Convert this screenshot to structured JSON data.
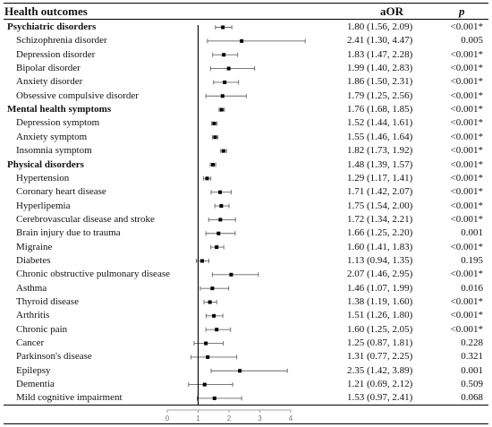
{
  "header": {
    "outcome": "Health outcomes",
    "aor": "aOR",
    "p": "p"
  },
  "chart_data": {
    "type": "forest",
    "x_ticks": [
      "0",
      "1",
      "2",
      "3",
      "4"
    ],
    "xlim": [
      0,
      4
    ],
    "reference_line": 1,
    "rows": [
      {
        "kind": "category",
        "label": "Psychiatric disorders",
        "aor": 1.8,
        "lo": 1.56,
        "hi": 2.09,
        "aor_text": "1.80 (1.56, 2.09)",
        "p": "<0.001*"
      },
      {
        "kind": "item",
        "label": "Schizophrenia disorder",
        "aor": 2.41,
        "lo": 1.3,
        "hi": 4.47,
        "aor_text": "2.41 (1.30, 4.47)",
        "p": "0.005"
      },
      {
        "kind": "item",
        "label": "Depression disorder",
        "aor": 1.83,
        "lo": 1.47,
        "hi": 2.28,
        "aor_text": "1.83 (1.47, 2.28)",
        "p": "<0.001*"
      },
      {
        "kind": "item",
        "label": "Bipolar disorder",
        "aor": 1.99,
        "lo": 1.4,
        "hi": 2.83,
        "aor_text": "1.99 (1.40, 2.83)",
        "p": "<0.001*"
      },
      {
        "kind": "item",
        "label": "Anxiety disorder",
        "aor": 1.86,
        "lo": 1.5,
        "hi": 2.31,
        "aor_text": "1.86 (1.50, 2.31)",
        "p": "<0.001*"
      },
      {
        "kind": "item",
        "label": "Obsessive compulsive disorder",
        "aor": 1.79,
        "lo": 1.25,
        "hi": 2.56,
        "aor_text": "1.79 (1.25, 2.56)",
        "p": "<0.001*"
      },
      {
        "kind": "category",
        "label": "Mental health symptoms",
        "aor": 1.76,
        "lo": 1.68,
        "hi": 1.85,
        "aor_text": "1.76 (1.68, 1.85)",
        "p": "<0.001*"
      },
      {
        "kind": "item",
        "label": "Depression symptom",
        "aor": 1.52,
        "lo": 1.44,
        "hi": 1.61,
        "aor_text": "1.52 (1.44, 1.61)",
        "p": "<0.001*"
      },
      {
        "kind": "item",
        "label": "Anxiety symptom",
        "aor": 1.55,
        "lo": 1.46,
        "hi": 1.64,
        "aor_text": "1.55 (1.46, 1.64)",
        "p": "<0.001*"
      },
      {
        "kind": "item",
        "label": "Insomnia symptom",
        "aor": 1.82,
        "lo": 1.73,
        "hi": 1.92,
        "aor_text": "1.82 (1.73, 1.92)",
        "p": "<0.001*"
      },
      {
        "kind": "category",
        "label": "Physical disorders",
        "aor": 1.48,
        "lo": 1.39,
        "hi": 1.57,
        "aor_text": "1.48 (1.39, 1.57)",
        "p": "<0.001*"
      },
      {
        "kind": "item",
        "label": "Hypertension",
        "aor": 1.29,
        "lo": 1.17,
        "hi": 1.41,
        "aor_text": "1.29 (1.17, 1.41)",
        "p": "<0.001*"
      },
      {
        "kind": "item",
        "label": "Coronary heart disease",
        "aor": 1.71,
        "lo": 1.42,
        "hi": 2.07,
        "aor_text": "1.71 (1.42, 2.07)",
        "p": "<0.001*"
      },
      {
        "kind": "item",
        "label": "Hyperlipemia",
        "aor": 1.75,
        "lo": 1.54,
        "hi": 2.0,
        "aor_text": "1.75 (1.54, 2.00)",
        "p": "<0.001*"
      },
      {
        "kind": "item",
        "label": "Cerebrovascular disease and stroke",
        "aor": 1.72,
        "lo": 1.34,
        "hi": 2.21,
        "aor_text": "1.72 (1.34, 2.21)",
        "p": "<0.001*"
      },
      {
        "kind": "item",
        "label": "Brain injury due to trauma",
        "aor": 1.66,
        "lo": 1.25,
        "hi": 2.2,
        "aor_text": "1.66 (1.25, 2.20)",
        "p": "0.001"
      },
      {
        "kind": "item",
        "label": "Migraine",
        "aor": 1.6,
        "lo": 1.41,
        "hi": 1.83,
        "aor_text": "1.60 (1.41, 1.83)",
        "p": "<0.001*"
      },
      {
        "kind": "item",
        "label": "Diabetes",
        "aor": 1.13,
        "lo": 0.94,
        "hi": 1.35,
        "aor_text": "1.13 (0.94, 1.35)",
        "p": "0.195"
      },
      {
        "kind": "item",
        "label": "Chronic obstructive pulmonary disease",
        "aor": 2.07,
        "lo": 1.46,
        "hi": 2.95,
        "aor_text": "2.07 (1.46, 2.95)",
        "p": "<0.001*"
      },
      {
        "kind": "item",
        "label": "Asthma",
        "aor": 1.46,
        "lo": 1.07,
        "hi": 1.99,
        "aor_text": "1.46 (1.07, 1.99)",
        "p": "0.016"
      },
      {
        "kind": "item",
        "label": "Thyroid disease",
        "aor": 1.38,
        "lo": 1.19,
        "hi": 1.6,
        "aor_text": "1.38 (1.19, 1.60)",
        "p": "<0.001*"
      },
      {
        "kind": "item",
        "label": "Arthritis",
        "aor": 1.51,
        "lo": 1.26,
        "hi": 1.8,
        "aor_text": "1.51 (1.26, 1.80)",
        "p": "<0.001*"
      },
      {
        "kind": "item",
        "label": "Chronic pain",
        "aor": 1.6,
        "lo": 1.25,
        "hi": 2.05,
        "aor_text": "1.60 (1.25, 2.05)",
        "p": "<0.001*"
      },
      {
        "kind": "item",
        "label": "Cancer",
        "aor": 1.25,
        "lo": 0.87,
        "hi": 1.81,
        "aor_text": "1.25 (0.87, 1.81)",
        "p": "0.228"
      },
      {
        "kind": "item",
        "label": "Parkinson's disease",
        "aor": 1.31,
        "lo": 0.77,
        "hi": 2.25,
        "aor_text": "1.31 (0.77, 2.25)",
        "p": "0.321"
      },
      {
        "kind": "item",
        "label": "Epilepsy",
        "aor": 2.35,
        "lo": 1.42,
        "hi": 3.89,
        "aor_text": "2.35 (1.42, 3.89)",
        "p": "0.001"
      },
      {
        "kind": "item",
        "label": "Dementia",
        "aor": 1.21,
        "lo": 0.69,
        "hi": 2.12,
        "aor_text": "1.21 (0.69, 2.12)",
        "p": "0.509"
      },
      {
        "kind": "item",
        "label": "Mild cognitive impairment",
        "aor": 1.53,
        "lo": 0.97,
        "hi": 2.41,
        "aor_text": "1.53 (0.97, 2.41)",
        "p": "0.068"
      }
    ]
  }
}
